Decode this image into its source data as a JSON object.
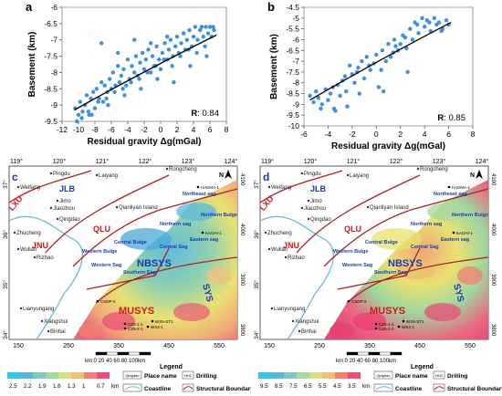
{
  "colors": {
    "scatter": "#3d8fe0",
    "fit": "#000000",
    "map_land_low": "#53b3d8",
    "map_land_mid": "#e8e06a",
    "map_land_high": "#e8446a",
    "boundary": "#b02020",
    "coastline": "#66b5d8"
  },
  "panel_a": {
    "letter": "a",
    "chart_data": {
      "type": "scatter",
      "xlabel": "Residual gravity Δg(mGal)",
      "ylabel": "Basement (km)",
      "xlim": [
        -12,
        8
      ],
      "ylim": [
        -9.5,
        -6
      ],
      "xticks": [
        "-12",
        "-10",
        "-8",
        "-6",
        "-4",
        "-2",
        "0",
        "2",
        "4",
        "6",
        "8"
      ],
      "yticks": [
        "-6",
        "-6.5",
        "-7",
        "-7.5",
        "-8",
        "-8.5",
        "-9",
        "-9.5"
      ],
      "r_label": "R",
      "r_value": ": 0.84",
      "fit": {
        "x": [
          -10.5,
          6.8
        ],
        "y": [
          -9.15,
          -6.85
        ]
      },
      "series": [
        {
          "x": [
            -10.4,
            -10,
            -9.8,
            -9.5,
            -9.2,
            -9,
            -8.7,
            -8.5,
            -8.2,
            -8,
            -7.8,
            -7.5,
            -7.2,
            -7,
            -6.8,
            -6.5,
            -6.2,
            -6,
            -5.8,
            -5.5,
            -5.2,
            -5,
            -4.8,
            -4.5,
            -4.2,
            -4,
            -3.8,
            -3.5,
            -3.2,
            -3,
            -2.8,
            -2.5,
            -2.2,
            -2,
            -1.8,
            -1.5,
            -1.2,
            -1,
            -0.8,
            -0.5,
            -0.2,
            0,
            0.2,
            0.5,
            0.8,
            1,
            1.2,
            1.5,
            1.8,
            2,
            2.2,
            2.5,
            2.8,
            3,
            3.2,
            3.5,
            3.8,
            4,
            4.2,
            4.5,
            4.8,
            5,
            5.2,
            5.5,
            5.8,
            6,
            6.2,
            6.5,
            -9.6,
            -8.8,
            -7.6,
            -6.6,
            -5.6,
            -4.6,
            -3.6,
            -2.6,
            -1.6,
            -0.6,
            0.4,
            1.4,
            2.4,
            3.4,
            4.4,
            5.4,
            -10.2,
            -8.4,
            -6.4,
            -4.4,
            -2.4,
            -0.4,
            1.6,
            3.6,
            5.6,
            -7.2,
            -5.2,
            -3.2,
            -1.2,
            0.8,
            2.8,
            4.8,
            6.4
          ],
          "y": [
            -9.1,
            -9.3,
            -8.9,
            -9.2,
            -9.0,
            -8.7,
            -9.3,
            -8.8,
            -8.6,
            -9.1,
            -8.5,
            -8.8,
            -8.3,
            -8.9,
            -8.4,
            -8.6,
            -8.2,
            -8.5,
            -8.0,
            -8.4,
            -7.8,
            -8.3,
            -8.1,
            -7.9,
            -8.4,
            -7.6,
            -8.2,
            -7.8,
            -8.0,
            -7.5,
            -8.1,
            -7.7,
            -7.4,
            -7.9,
            -7.6,
            -7.3,
            -8.0,
            -7.5,
            -7.8,
            -7.2,
            -7.6,
            -7.9,
            -7.4,
            -7.1,
            -7.6,
            -7.3,
            -7.0,
            -7.5,
            -7.2,
            -6.9,
            -7.4,
            -7.1,
            -6.8,
            -7.3,
            -7.0,
            -6.7,
            -7.2,
            -6.9,
            -6.6,
            -7.0,
            -6.7,
            -6.6,
            -6.9,
            -6.6,
            -6.8,
            -6.6,
            -6.9,
            -6.7,
            -9.4,
            -9.2,
            -8.9,
            -8.8,
            -8.6,
            -8.5,
            -8.3,
            -8.2,
            -8.0,
            -7.8,
            -7.6,
            -7.8,
            -7.5,
            -7.3,
            -7.4,
            -7.2,
            -9.5,
            -9.3,
            -9.0,
            -8.7,
            -8.5,
            -8.2,
            -8.3,
            -7.8,
            -7.5,
            -7.1,
            -7.4,
            -7.0,
            -7.1,
            -6.9,
            -6.8,
            -6.7,
            -6.6
          ]
        }
      ]
    }
  },
  "panel_b": {
    "letter": "b",
    "chart_data": {
      "type": "scatter",
      "xlabel": "Residual gravity Δg(mGal)",
      "ylabel": "Basement (km)",
      "xlim": [
        -6,
        8
      ],
      "ylim": [
        -10,
        -4.5
      ],
      "xticks": [
        "-6",
        "-4",
        "-2",
        "0",
        "2",
        "4",
        "6",
        "8"
      ],
      "yticks": [
        "-4.5",
        "-5",
        "-5.5",
        "-6",
        "-6.5",
        "-7",
        "-7.5",
        "-8",
        "-8.5",
        "-9",
        "-9.5",
        "-10"
      ],
      "r_label": "R",
      "r_value": ": 0.85",
      "fit": {
        "x": [
          -5.5,
          6.2
        ],
        "y": [
          -8.8,
          -5.2
        ]
      },
      "series": [
        {
          "x": [
            -5.5,
            -5.2,
            -5,
            -4.8,
            -4.5,
            -4.2,
            -4,
            -3.8,
            -3.5,
            -3.2,
            -3,
            -2.8,
            -2.5,
            -2.2,
            -2,
            -1.8,
            -1.5,
            -1.2,
            -1,
            -0.8,
            -0.5,
            -0.2,
            0,
            0.2,
            0.5,
            0.8,
            1,
            1.2,
            1.5,
            1.8,
            2,
            2.2,
            2.5,
            2.8,
            3,
            3.2,
            3.5,
            3.8,
            4,
            4.2,
            4.5,
            4.8,
            5,
            5.2,
            5.5,
            5.8,
            6,
            -4.6,
            -3.6,
            -2.6,
            -1.6,
            -0.6,
            0.4,
            1.4,
            2.4,
            3.4,
            4.4,
            5.4,
            -3.4,
            -1.4,
            0.6,
            2.6,
            -2.4,
            1.6
          ],
          "y": [
            -8.6,
            -8.9,
            -8.4,
            -8.7,
            -9.0,
            -8.3,
            -8.8,
            -8.5,
            -9.2,
            -8.1,
            -8.6,
            -7.9,
            -8.4,
            -7.2,
            -7.6,
            -8.0,
            -7.3,
            -7.0,
            -7.8,
            -6.8,
            -7.4,
            -7.1,
            -6.7,
            -8.2,
            -6.5,
            -7.0,
            -6.2,
            -6.8,
            -6.0,
            -6.5,
            -6.2,
            -5.8,
            -6.4,
            -5.5,
            -6.0,
            -5.2,
            -5.7,
            -5.0,
            -5.4,
            -5.1,
            -5.6,
            -5.0,
            -5.3,
            -5.2,
            -5.5,
            -5.1,
            -5.3,
            -9.2,
            -8.2,
            -7.7,
            -7.5,
            -7.2,
            -7.4,
            -6.6,
            -5.9,
            -5.3,
            -5.2,
            -5.6,
            -9.3,
            -8.5,
            -8.4,
            -7.5,
            -9.1,
            -6.3
          ]
        }
      ]
    }
  },
  "map_common": {
    "lon_ticks": [
      "119°",
      "120°",
      "121°",
      "122°",
      "123°",
      "124°"
    ],
    "lat_ticks": [
      "37°",
      "36°",
      "35°",
      "34°"
    ],
    "east_ticks": [
      "150",
      "250",
      "350",
      "450",
      "550"
    ],
    "north_ticks": [
      "4100",
      "4000",
      "3900",
      "3800"
    ],
    "north_arrow": "N",
    "places": [
      "Weifang",
      "Pingdu",
      "Laiyang",
      "Rongcheng",
      "Jimo",
      "Jiaozhou",
      "Qingdao",
      "Zhucheng",
      "Wulian",
      "Rizhao",
      "Lianyungang",
      "Xiangshui",
      "Binhai",
      "Qianliyan Island"
    ],
    "units": [
      "JLB",
      "LXU",
      "JNU",
      "QLU",
      "NBSYS",
      "SYS",
      "MUSYS"
    ],
    "structures": [
      "Northeast sag",
      "Northern Bulge",
      "Eastern sag",
      "Central Bulge",
      "Central Sag",
      "Western Sag",
      "Southern Sag",
      "Western Bulge",
      "Northern sag"
    ],
    "wells": [
      "HAEMA-1",
      "KACHI-1",
      "CSDP-2",
      "CZ6-1-1",
      "CZ6-2-1",
      "WX5-ST1",
      "WX4-1"
    ],
    "scale_label": "km 0  20 40 60 80 100km",
    "legend_title": "Legend",
    "legend_place": "Place name",
    "legend_drilling": "Drilling",
    "legend_coastline": "Coastline",
    "legend_structural": "Structural Boundary",
    "legend_place_icon": "Qingdao",
    "legend_drill_icon": "HH2"
  },
  "panel_c": {
    "letter": "c",
    "colorbar": [
      "2.5",
      "2.2",
      "1.9",
      "1.6",
      "1.3",
      "1",
      "0.7",
      "km"
    ]
  },
  "panel_d": {
    "letter": "d",
    "colorbar": [
      "9.5",
      "8.5",
      "7.5",
      "6.5",
      "5.5",
      "4.5",
      "3.5",
      "km"
    ]
  }
}
